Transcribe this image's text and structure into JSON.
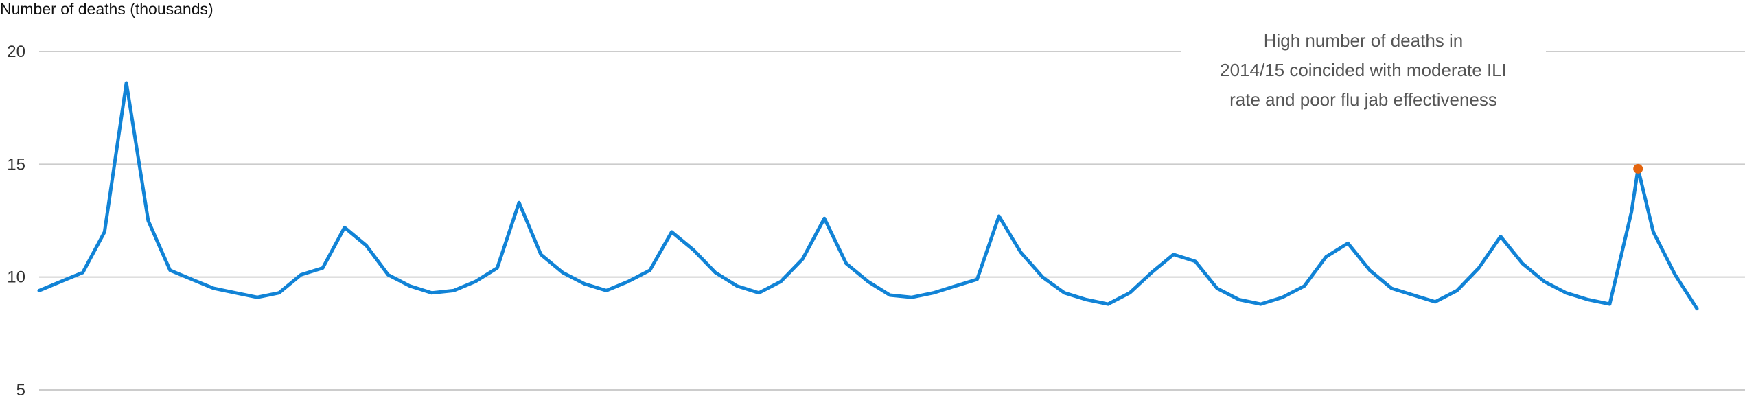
{
  "chart_data": {
    "type": "line",
    "ylabel": "Number of deaths (thousands)",
    "xlabel": "",
    "ylim": [
      5,
      20
    ],
    "y_ticks": [
      5,
      10,
      15,
      20
    ],
    "grid": true,
    "annotation": {
      "lines": [
        "High number of deaths in",
        "2014/15 coincided with moderate ILI",
        "rate and poor flu jab effectiveness"
      ]
    },
    "highlight": {
      "index": 733,
      "y": 14.8,
      "color": "#e4650f"
    },
    "series_color": "#1183d6",
    "series": [
      {
        "x": [
          0,
          10,
          20,
          30,
          40,
          50,
          60,
          70,
          80,
          90,
          100,
          110,
          120,
          130,
          140,
          150,
          160,
          170,
          180,
          190,
          200,
          210,
          220,
          230,
          240,
          250,
          260,
          270,
          280,
          290,
          300,
          310,
          320,
          330,
          340,
          350,
          360,
          370,
          380,
          390,
          400,
          410,
          420,
          430,
          440,
          450,
          460,
          470,
          480,
          490,
          500,
          510,
          520,
          530,
          540,
          550,
          560,
          570,
          580,
          590,
          600,
          610,
          620,
          630,
          640,
          650,
          660,
          670,
          680,
          690,
          700,
          710,
          720,
          730,
          733,
          740,
          750,
          760
        ],
        "values": [
          9.4,
          9.8,
          10.2,
          12.0,
          18.6,
          12.5,
          10.3,
          9.9,
          9.5,
          9.3,
          9.1,
          9.3,
          10.1,
          10.4,
          12.2,
          11.4,
          10.1,
          9.6,
          9.3,
          9.4,
          9.8,
          10.4,
          13.3,
          11.0,
          10.2,
          9.7,
          9.4,
          9.8,
          10.3,
          12.0,
          11.2,
          10.2,
          9.6,
          9.3,
          9.8,
          10.8,
          12.6,
          10.6,
          9.8,
          9.2,
          9.1,
          9.3,
          9.6,
          9.9,
          12.7,
          11.1,
          10.0,
          9.3,
          9.0,
          8.8,
          9.3,
          10.2,
          11.0,
          10.7,
          9.5,
          9.0,
          8.8,
          9.1,
          9.6,
          10.9,
          11.5,
          10.3,
          9.5,
          9.2,
          8.9,
          9.4,
          10.4,
          11.8,
          10.6,
          9.8,
          9.3,
          9.0,
          8.8,
          12.9,
          14.8,
          12.0,
          10.1,
          8.6
        ]
      }
    ]
  }
}
